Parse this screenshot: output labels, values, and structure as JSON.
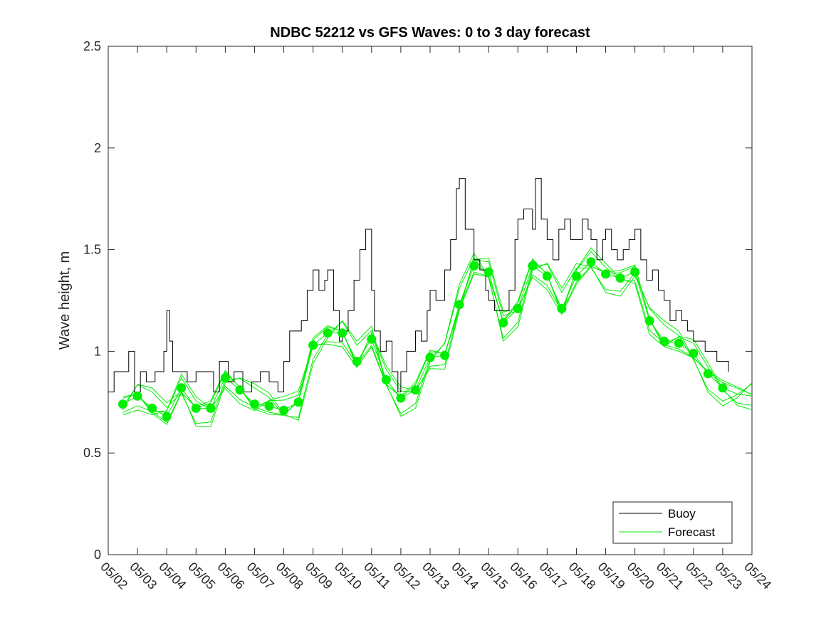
{
  "chart_data": {
    "type": "line",
    "title": "NDBC 52212 vs GFS Waves: 0 to 3 day forecast",
    "xlabel": "",
    "ylabel": "Wave height, m",
    "xlim_days": [
      2,
      24
    ],
    "ylim": [
      0,
      2.5
    ],
    "x_tick_labels": [
      "05/02",
      "05/03",
      "05/04",
      "05/05",
      "05/06",
      "05/07",
      "05/08",
      "05/09",
      "05/10",
      "05/11",
      "05/12",
      "05/13",
      "05/14",
      "05/15",
      "05/16",
      "05/17",
      "05/18",
      "05/19",
      "05/20",
      "05/21",
      "05/22",
      "05/23",
      "05/24"
    ],
    "y_ticks": [
      0,
      0.5,
      1,
      1.5,
      2,
      2.5
    ],
    "y_tick_labels": [
      "0",
      "0.5",
      "1",
      "1.5",
      "2",
      "2.5"
    ],
    "grid": false,
    "legend_position": "bottom-right",
    "colors": {
      "buoy": "#000000",
      "forecast": "#00ee00",
      "axes": "#262626"
    },
    "series": [
      {
        "name": "Buoy",
        "x_day": [
          2.0,
          2.2,
          2.4,
          2.7,
          2.9,
          3.0,
          3.1,
          3.3,
          3.6,
          3.9,
          4.0,
          4.1,
          4.2,
          4.5,
          4.7,
          5.0,
          5.4,
          5.6,
          5.8,
          6.0,
          6.1,
          6.3,
          6.6,
          6.9,
          7.0,
          7.2,
          7.5,
          7.8,
          8.0,
          8.2,
          8.4,
          8.6,
          8.8,
          9.0,
          9.2,
          9.4,
          9.5,
          9.7,
          9.9,
          10.0,
          10.2,
          10.4,
          10.6,
          10.8,
          11.0,
          11.1,
          11.3,
          11.5,
          11.7,
          11.9,
          12.0,
          12.2,
          12.5,
          12.7,
          12.9,
          13.0,
          13.2,
          13.5,
          13.7,
          13.9,
          14.0,
          14.2,
          14.5,
          14.7,
          14.9,
          15.0,
          15.2,
          15.5,
          15.7,
          15.9,
          16.0,
          16.2,
          16.5,
          16.6,
          16.8,
          17.0,
          17.2,
          17.4,
          17.6,
          17.8,
          18.0,
          18.2,
          18.4,
          18.5,
          18.7,
          18.9,
          19.0,
          19.2,
          19.4,
          19.6,
          19.8,
          20.0,
          20.2,
          20.4,
          20.6,
          20.8,
          21.0,
          21.2,
          21.4,
          21.6,
          21.8,
          22.0,
          22.2,
          22.4,
          22.6,
          22.8,
          23.0,
          23.2
        ],
        "y": [
          0.8,
          0.9,
          0.9,
          1.0,
          0.8,
          0.8,
          0.9,
          0.85,
          0.9,
          1.0,
          1.2,
          1.05,
          0.9,
          0.9,
          0.85,
          0.9,
          0.9,
          0.8,
          0.95,
          0.95,
          0.85,
          0.9,
          0.8,
          0.85,
          0.85,
          0.9,
          0.85,
          0.8,
          0.95,
          1.1,
          1.1,
          1.15,
          1.3,
          1.4,
          1.3,
          1.35,
          1.4,
          1.2,
          1.05,
          1.1,
          1.2,
          1.35,
          1.5,
          1.6,
          1.3,
          1.1,
          1.0,
          1.05,
          0.9,
          0.8,
          0.9,
          1.0,
          1.1,
          1.05,
          1.2,
          1.3,
          1.25,
          1.4,
          1.55,
          1.8,
          1.85,
          1.6,
          1.45,
          1.4,
          1.3,
          1.25,
          1.2,
          1.2,
          1.3,
          1.55,
          1.65,
          1.7,
          1.6,
          1.85,
          1.65,
          1.55,
          1.45,
          1.6,
          1.65,
          1.55,
          1.55,
          1.65,
          1.6,
          1.55,
          1.45,
          1.55,
          1.6,
          1.5,
          1.45,
          1.5,
          1.55,
          1.6,
          1.45,
          1.35,
          1.4,
          1.3,
          1.25,
          1.15,
          1.2,
          1.15,
          1.1,
          1.05,
          1.05,
          1.0,
          1.0,
          0.95,
          0.95,
          0.9
        ]
      },
      {
        "name": "Forecast",
        "x_day": [
          2.5,
          3.0,
          3.5,
          4.0,
          4.5,
          5.0,
          5.5,
          6.0,
          6.5,
          7.0,
          7.5,
          8.0,
          8.5,
          9.0,
          9.5,
          10.0,
          10.5,
          11.0,
          11.5,
          12.0,
          12.5,
          13.0,
          13.5,
          14.0,
          14.5,
          15.0,
          15.5,
          16.0,
          16.5,
          17.0,
          17.5,
          18.0,
          18.5,
          19.0,
          19.5,
          20.0,
          20.5,
          21.0,
          21.5,
          22.0,
          22.5,
          23.0,
          23.5,
          24.0
        ],
        "y": [
          0.74,
          0.78,
          0.72,
          0.68,
          0.82,
          0.72,
          0.72,
          0.87,
          0.81,
          0.74,
          0.73,
          0.71,
          0.75,
          1.03,
          1.09,
          1.09,
          0.95,
          1.06,
          0.86,
          0.77,
          0.81,
          0.97,
          0.98,
          1.23,
          1.42,
          1.39,
          1.14,
          1.21,
          1.42,
          1.37,
          1.21,
          1.37,
          1.44,
          1.38,
          1.36,
          1.39,
          1.15,
          1.05,
          1.04,
          0.99,
          0.89,
          0.82,
          0.79,
          0.78
        ]
      }
    ],
    "forecast_markers": {
      "x_day": [
        2.5,
        3.0,
        3.5,
        4.0,
        4.5,
        5.0,
        5.5,
        6.0,
        6.5,
        7.0,
        7.5,
        8.0,
        8.5,
        9.0,
        9.5,
        10.0,
        10.5,
        11.0,
        11.5,
        12.0,
        12.5,
        13.0,
        13.5,
        14.0,
        14.5,
        15.0,
        15.5,
        16.0,
        16.5,
        17.0,
        17.5,
        18.0,
        18.5,
        19.0,
        19.5,
        20.0,
        20.5,
        21.0,
        21.5,
        22.0,
        22.5,
        23.0
      ],
      "y": [
        0.74,
        0.78,
        0.72,
        0.68,
        0.82,
        0.72,
        0.72,
        0.87,
        0.81,
        0.74,
        0.73,
        0.71,
        0.75,
        1.03,
        1.09,
        1.09,
        0.95,
        1.06,
        0.86,
        0.77,
        0.81,
        0.97,
        0.98,
        1.23,
        1.42,
        1.39,
        1.14,
        1.21,
        1.42,
        1.37,
        1.21,
        1.37,
        1.44,
        1.38,
        1.36,
        1.39,
        1.15,
        1.05,
        1.04,
        0.99,
        0.89,
        0.82
      ]
    }
  }
}
